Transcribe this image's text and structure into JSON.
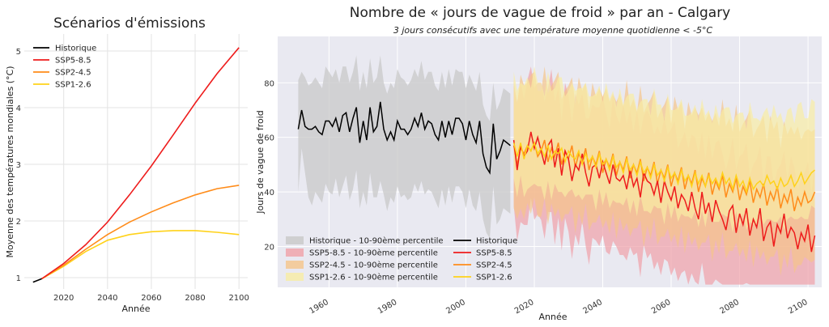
{
  "chart_data": [
    {
      "type": "line",
      "title": "Scénarios d'émissions",
      "xlabel": "Année",
      "ylabel": "Moyenne des températures mondiales (°C)",
      "xlim": [
        2002,
        2104
      ],
      "ylim": [
        0.8,
        5.3
      ],
      "xticks": [
        2020,
        2040,
        2060,
        2080,
        2100
      ],
      "yticks": [
        1,
        2,
        3,
        4,
        5
      ],
      "grid": true,
      "legend_position": "top-left",
      "series": [
        {
          "name": "Historique",
          "color": "#000000",
          "x": [
            2006,
            2010
          ],
          "y": [
            0.92,
            0.98
          ]
        },
        {
          "name": "SSP5-8.5",
          "color": "#ee1c1c",
          "x": [
            2010,
            2020,
            2030,
            2040,
            2050,
            2060,
            2070,
            2080,
            2090,
            2100
          ],
          "y": [
            0.98,
            1.25,
            1.58,
            1.98,
            2.46,
            2.97,
            3.52,
            4.08,
            4.6,
            5.06
          ]
        },
        {
          "name": "SSP2-4.5",
          "color": "#ff8c1a",
          "x": [
            2010,
            2020,
            2030,
            2040,
            2050,
            2060,
            2070,
            2080,
            2090,
            2100
          ],
          "y": [
            0.98,
            1.22,
            1.5,
            1.76,
            1.98,
            2.16,
            2.32,
            2.46,
            2.57,
            2.63
          ]
        },
        {
          "name": "SSP1-2.6",
          "color": "#ffd21a",
          "x": [
            2010,
            2020,
            2030,
            2040,
            2050,
            2060,
            2070,
            2080,
            2090,
            2100
          ],
          "y": [
            0.98,
            1.2,
            1.46,
            1.66,
            1.76,
            1.81,
            1.83,
            1.83,
            1.8,
            1.76
          ]
        }
      ]
    },
    {
      "type": "line",
      "title": "Nombre de « jours de vague de froid » par an - Calgary",
      "subtitle": "3 jours consécutifs avec une température moyenne quotidienne < -5°C",
      "xlabel": "Année",
      "ylabel": "Jours de vague de froid",
      "xlim": [
        1945,
        2104
      ],
      "ylim": [
        5,
        97
      ],
      "xticks": [
        1960,
        1980,
        2000,
        2020,
        2040,
        2060,
        2080,
        2100
      ],
      "yticks": [
        20,
        40,
        60,
        80
      ],
      "grid": true,
      "legend_position": "bottom-left",
      "historical": {
        "name": "Historique",
        "color": "#000000",
        "x_start": 1951,
        "values": [
          63,
          70,
          64,
          63,
          63,
          64,
          62,
          61,
          66,
          66,
          64,
          67,
          62,
          68,
          69,
          62,
          67,
          71,
          58,
          66,
          59,
          71,
          62,
          64,
          73,
          63,
          59,
          62,
          59,
          66,
          63,
          63,
          61,
          63,
          67,
          64,
          69,
          63,
          66,
          65,
          61,
          59,
          66,
          60,
          66,
          61,
          67,
          67,
          65,
          59,
          66,
          61,
          58,
          66,
          54,
          49,
          47,
          65,
          52,
          55,
          59,
          58,
          57
        ],
        "band_name": "Historique - 10-90ème percentile",
        "band_color": "#c8c8c8",
        "band_low": [
          40,
          56,
          47,
          38,
          35,
          40,
          38,
          36,
          43,
          40,
          39,
          45,
          38,
          42,
          46,
          37,
          41,
          48,
          34,
          40,
          35,
          47,
          38,
          38,
          44,
          39,
          33,
          38,
          36,
          42,
          38,
          39,
          37,
          38,
          43,
          40,
          44,
          39,
          41,
          40,
          37,
          34,
          41,
          35,
          42,
          36,
          42,
          42,
          40,
          34,
          41,
          35,
          33,
          40,
          30,
          25,
          23,
          42,
          28,
          30,
          34,
          33,
          32
        ],
        "band_high": [
          81,
          84,
          82,
          79,
          80,
          82,
          80,
          78,
          86,
          84,
          82,
          85,
          80,
          86,
          86,
          80,
          84,
          90,
          77,
          84,
          78,
          89,
          80,
          82,
          90,
          80,
          76,
          80,
          78,
          85,
          82,
          81,
          79,
          81,
          85,
          82,
          88,
          81,
          84,
          84,
          79,
          77,
          84,
          78,
          85,
          79,
          85,
          84,
          84,
          78,
          83,
          80,
          77,
          84,
          72,
          68,
          66,
          80,
          70,
          73,
          78,
          77,
          76
        ]
      },
      "x_start_scenarios": 2014,
      "scenarios": [
        {
          "name": "SSP5-8.5",
          "color": "#ee1c1c",
          "band_name": "SSP5-8.5 - 10-90ème percentile",
          "band_color": "#f0a0a8",
          "values": [
            59,
            48,
            57,
            53,
            55,
            62,
            56,
            60,
            55,
            50,
            57,
            59,
            49,
            56,
            46,
            55,
            52,
            44,
            50,
            48,
            54,
            47,
            42,
            49,
            50,
            45,
            51,
            47,
            43,
            50,
            45,
            44,
            46,
            41,
            48,
            42,
            45,
            38,
            47,
            44,
            43,
            39,
            44,
            36,
            44,
            40,
            37,
            42,
            34,
            39,
            37,
            33,
            40,
            34,
            30,
            40,
            32,
            36,
            29,
            37,
            33,
            30,
            26,
            33,
            35,
            25,
            32,
            28,
            34,
            24,
            30,
            27,
            34,
            22,
            27,
            29,
            20,
            28,
            25,
            32,
            23,
            27,
            25,
            19,
            25,
            22,
            28,
            18,
            24
          ]
        },
        {
          "name": "SSP2-4.5",
          "color": "#ff8c1a",
          "band_name": "SSP2-4.5 - 10-90ème percentile",
          "band_color": "#f5c48a",
          "values": [
            57,
            50,
            56,
            54,
            57,
            55,
            58,
            53,
            55,
            59,
            51,
            56,
            53,
            58,
            50,
            55,
            52,
            57,
            49,
            54,
            51,
            56,
            48,
            53,
            50,
            55,
            47,
            52,
            49,
            54,
            46,
            51,
            48,
            53,
            45,
            50,
            47,
            52,
            44,
            49,
            46,
            51,
            43,
            48,
            45,
            50,
            42,
            47,
            44,
            49,
            41,
            46,
            43,
            48,
            40,
            45,
            42,
            47,
            39,
            44,
            41,
            46,
            38,
            43,
            40,
            45,
            37,
            42,
            39,
            44,
            36,
            41,
            38,
            43,
            35,
            40,
            37,
            42,
            34,
            39,
            36,
            41,
            33,
            38,
            35,
            40,
            36,
            37,
            40
          ]
        },
        {
          "name": "SSP1-2.6",
          "color": "#ffd21a",
          "band_name": "SSP1-2.6 - 10-90ème percentile",
          "band_color": "#f8eca4",
          "values": [
            58,
            53,
            58,
            52,
            57,
            55,
            58,
            54,
            56,
            53,
            57,
            52,
            55,
            54,
            56,
            51,
            55,
            53,
            52,
            55,
            50,
            54,
            51,
            53,
            49,
            54,
            50,
            52,
            48,
            53,
            49,
            51,
            47,
            52,
            48,
            50,
            46,
            51,
            47,
            49,
            45,
            50,
            46,
            48,
            44,
            49,
            45,
            47,
            43,
            48,
            44,
            46,
            42,
            47,
            43,
            46,
            42,
            46,
            43,
            45,
            42,
            47,
            43,
            45,
            41,
            46,
            42,
            44,
            40,
            45,
            41,
            43,
            44,
            42,
            46,
            43,
            44,
            41,
            45,
            42,
            43,
            46,
            42,
            44,
            47,
            43,
            45,
            47,
            48
          ]
        }
      ]
    }
  ]
}
